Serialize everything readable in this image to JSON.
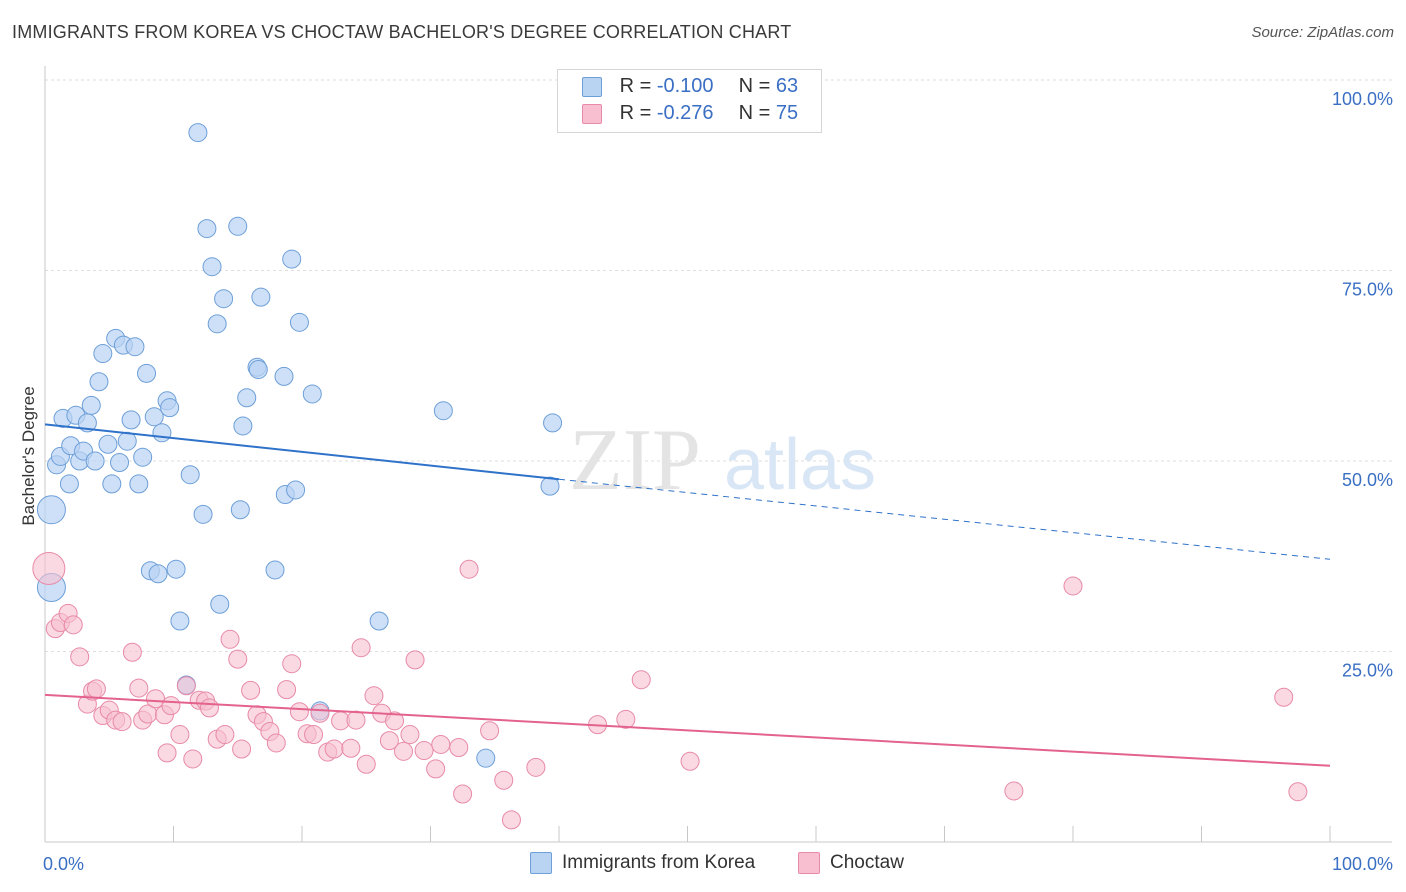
{
  "title": "IMMIGRANTS FROM KOREA VS CHOCTAW BACHELOR'S DEGREE CORRELATION CHART",
  "source": "Source: ZipAtlas.com",
  "watermark": {
    "zip": "ZIP",
    "atlas": "atlas"
  },
  "colors": {
    "korea_fill": "#b9d3f3",
    "korea_stroke": "#6d9fd8",
    "korea_line": "#2f72c9",
    "choctaw_fill": "#f7bfd0",
    "choctaw_stroke": "#e88aa8",
    "choctaw_line": "#e3628e",
    "axis_label": "#3a6fc4",
    "grid": "#dedede"
  },
  "legend": {
    "korea": {
      "r_label": "R =",
      "r_value": "-0.100",
      "n_label": "N =",
      "n_value": "63"
    },
    "choctaw": {
      "r_label": "R =",
      "r_value": "-0.276",
      "n_label": "N =",
      "n_value": "75"
    }
  },
  "bottom_legend": {
    "korea": "Immigrants from Korea",
    "choctaw": "Choctaw"
  },
  "chart_data": {
    "type": "scatter",
    "xlabel": "",
    "ylabel": "Bachelor's Degree",
    "xlim": [
      0,
      100
    ],
    "ylim": [
      0,
      100
    ],
    "x_tick_labels": [
      "0.0%",
      "100.0%"
    ],
    "y_tick_labels": [
      "25.0%",
      "50.0%",
      "75.0%",
      "100.0%"
    ],
    "y_ticks": [
      25,
      50,
      75,
      100
    ],
    "grid": true,
    "series": [
      {
        "name": "Immigrants from Korea",
        "r": -0.1,
        "n": 63,
        "trend": {
          "x": [
            0,
            40
          ],
          "y": [
            54.8,
            47.6
          ],
          "dashed_to_x": 100,
          "dashed_y": 37.1
        },
        "points": [
          [
            0.5,
            43.6
          ],
          [
            0.5,
            33.4
          ],
          [
            0.9,
            49.5
          ],
          [
            1.2,
            50.6
          ],
          [
            1.4,
            55.6
          ],
          [
            1.9,
            47.0
          ],
          [
            2.0,
            52.0
          ],
          [
            2.4,
            56.0
          ],
          [
            2.7,
            50.0
          ],
          [
            3.0,
            51.3
          ],
          [
            3.3,
            55.0
          ],
          [
            3.6,
            57.3
          ],
          [
            3.9,
            50.0
          ],
          [
            4.2,
            60.4
          ],
          [
            4.5,
            64.1
          ],
          [
            4.9,
            52.2
          ],
          [
            5.2,
            47.0
          ],
          [
            5.5,
            66.1
          ],
          [
            5.8,
            49.8
          ],
          [
            6.1,
            65.2
          ],
          [
            6.4,
            52.6
          ],
          [
            6.7,
            55.4
          ],
          [
            7.0,
            65.0
          ],
          [
            7.3,
            47.0
          ],
          [
            7.6,
            50.5
          ],
          [
            7.9,
            61.5
          ],
          [
            8.2,
            35.6
          ],
          [
            8.5,
            55.8
          ],
          [
            8.8,
            35.2
          ],
          [
            9.1,
            53.7
          ],
          [
            9.5,
            57.9
          ],
          [
            9.7,
            57.0
          ],
          [
            10.2,
            35.8
          ],
          [
            10.5,
            29.0
          ],
          [
            11.0,
            20.6
          ],
          [
            11.3,
            48.2
          ],
          [
            11.9,
            93.1
          ],
          [
            12.3,
            43.0
          ],
          [
            12.6,
            80.5
          ],
          [
            13.0,
            75.5
          ],
          [
            13.4,
            68.0
          ],
          [
            13.6,
            31.2
          ],
          [
            13.9,
            71.3
          ],
          [
            15.0,
            80.8
          ],
          [
            15.2,
            43.6
          ],
          [
            15.4,
            54.6
          ],
          [
            15.7,
            58.3
          ],
          [
            16.5,
            62.3
          ],
          [
            16.6,
            62.0
          ],
          [
            16.8,
            71.5
          ],
          [
            17.9,
            35.7
          ],
          [
            18.6,
            61.1
          ],
          [
            18.7,
            45.6
          ],
          [
            19.2,
            76.5
          ],
          [
            19.5,
            46.2
          ],
          [
            19.8,
            68.2
          ],
          [
            20.8,
            58.8
          ],
          [
            21.4,
            17.2
          ],
          [
            26.0,
            29.0
          ],
          [
            31.0,
            56.6
          ],
          [
            34.3,
            11.0
          ],
          [
            39.3,
            46.7
          ],
          [
            39.5,
            55.0
          ]
        ]
      },
      {
        "name": "Choctaw",
        "r": -0.276,
        "n": 75,
        "trend": {
          "x": [
            0,
            100
          ],
          "y": [
            19.3,
            10.0
          ]
        },
        "points": [
          [
            0.3,
            35.9
          ],
          [
            0.8,
            28.0
          ],
          [
            1.2,
            28.8
          ],
          [
            1.8,
            30.0
          ],
          [
            2.2,
            28.5
          ],
          [
            2.7,
            24.3
          ],
          [
            3.3,
            18.1
          ],
          [
            3.7,
            19.8
          ],
          [
            4.0,
            20.1
          ],
          [
            4.5,
            16.6
          ],
          [
            5.0,
            17.3
          ],
          [
            5.5,
            16.0
          ],
          [
            6.0,
            15.8
          ],
          [
            6.8,
            24.9
          ],
          [
            7.3,
            20.2
          ],
          [
            7.6,
            16.0
          ],
          [
            8.0,
            16.8
          ],
          [
            8.6,
            18.8
          ],
          [
            9.3,
            16.7
          ],
          [
            9.5,
            11.7
          ],
          [
            9.8,
            17.9
          ],
          [
            10.5,
            14.1
          ],
          [
            11.0,
            20.5
          ],
          [
            11.5,
            10.9
          ],
          [
            12.0,
            18.6
          ],
          [
            12.5,
            18.5
          ],
          [
            12.8,
            17.6
          ],
          [
            13.4,
            13.5
          ],
          [
            14.0,
            14.1
          ],
          [
            14.4,
            26.6
          ],
          [
            15.0,
            24.0
          ],
          [
            15.3,
            12.2
          ],
          [
            16.0,
            19.9
          ],
          [
            16.5,
            16.7
          ],
          [
            17.0,
            15.8
          ],
          [
            17.5,
            14.5
          ],
          [
            18.0,
            13.0
          ],
          [
            18.8,
            20.0
          ],
          [
            19.2,
            23.4
          ],
          [
            19.8,
            17.1
          ],
          [
            20.4,
            14.2
          ],
          [
            20.9,
            14.1
          ],
          [
            21.4,
            16.9
          ],
          [
            22.0,
            11.8
          ],
          [
            22.5,
            12.2
          ],
          [
            23.0,
            15.9
          ],
          [
            23.8,
            12.3
          ],
          [
            24.2,
            16.0
          ],
          [
            24.6,
            25.5
          ],
          [
            25.0,
            10.2
          ],
          [
            25.6,
            19.2
          ],
          [
            26.2,
            16.9
          ],
          [
            26.8,
            13.3
          ],
          [
            27.2,
            15.9
          ],
          [
            27.9,
            11.9
          ],
          [
            28.4,
            14.1
          ],
          [
            28.8,
            23.9
          ],
          [
            29.5,
            12.0
          ],
          [
            30.4,
            9.6
          ],
          [
            30.8,
            12.8
          ],
          [
            32.2,
            12.4
          ],
          [
            32.5,
            6.3
          ],
          [
            33.0,
            35.8
          ],
          [
            34.6,
            14.6
          ],
          [
            35.7,
            8.1
          ],
          [
            36.3,
            2.9
          ],
          [
            38.2,
            9.8
          ],
          [
            43.0,
            15.4
          ],
          [
            45.2,
            16.1
          ],
          [
            46.4,
            21.3
          ],
          [
            50.2,
            10.6
          ],
          [
            75.4,
            6.7
          ],
          [
            80.0,
            33.6
          ],
          [
            96.4,
            19.0
          ],
          [
            97.5,
            6.6
          ]
        ]
      }
    ]
  }
}
